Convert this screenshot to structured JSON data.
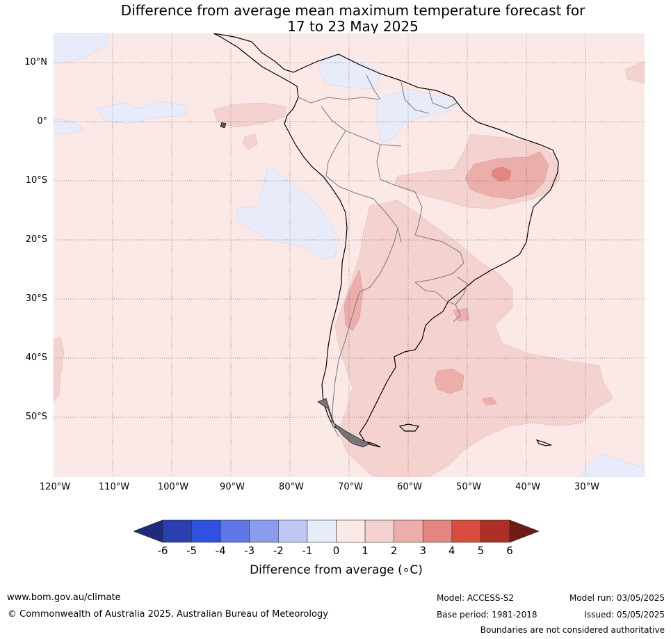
{
  "title_line1": "Difference from average mean maximum temperature forecast for",
  "title_line2": "17 to 23 May 2025",
  "map": {
    "lat_labels": [
      "10°N",
      "0°",
      "10°S",
      "20°S",
      "30°S",
      "40°S",
      "50°S"
    ],
    "lon_labels": [
      "120°W",
      "110°W",
      "100°W",
      "90°W",
      "80°W",
      "70°W",
      "60°W",
      "50°W",
      "40°W",
      "30°W"
    ],
    "background_color": "#fbe9e7",
    "palette": {
      "minus1": "#e8ecfa",
      "plus1": "#fbe9e7",
      "plus2": "#f4d2d0",
      "plus3": "#ecaeab",
      "plus4": "#e5857f"
    }
  },
  "colorbar": {
    "ticks": [
      "-6",
      "-5",
      "-4",
      "-3",
      "-2",
      "-1",
      "0",
      "1",
      "2",
      "3",
      "4",
      "5",
      "6"
    ],
    "colors": [
      "#1f2b7a",
      "#2a3fb0",
      "#2f50e0",
      "#5f77e6",
      "#8a9ded",
      "#bfc8f4",
      "#e8ecfa",
      "#fbe9e7",
      "#f4d2d0",
      "#ecaeab",
      "#e5857f",
      "#d94c40",
      "#ad2e24",
      "#6e1a17"
    ],
    "label": "Difference from average (∘C)"
  },
  "footer": {
    "url": "www.bom.gov.au/climate",
    "copyright": "© Commonwealth of Australia 2025, Australian Bureau of Meteorology",
    "model": "Model: ACCESS-S2",
    "base_period": "Base period: 1981-2018",
    "model_run": "Model run: 03/05/2025",
    "issued": "Issued: 05/05/2025",
    "disclaimer": "Boundaries are not considered authoritative"
  }
}
